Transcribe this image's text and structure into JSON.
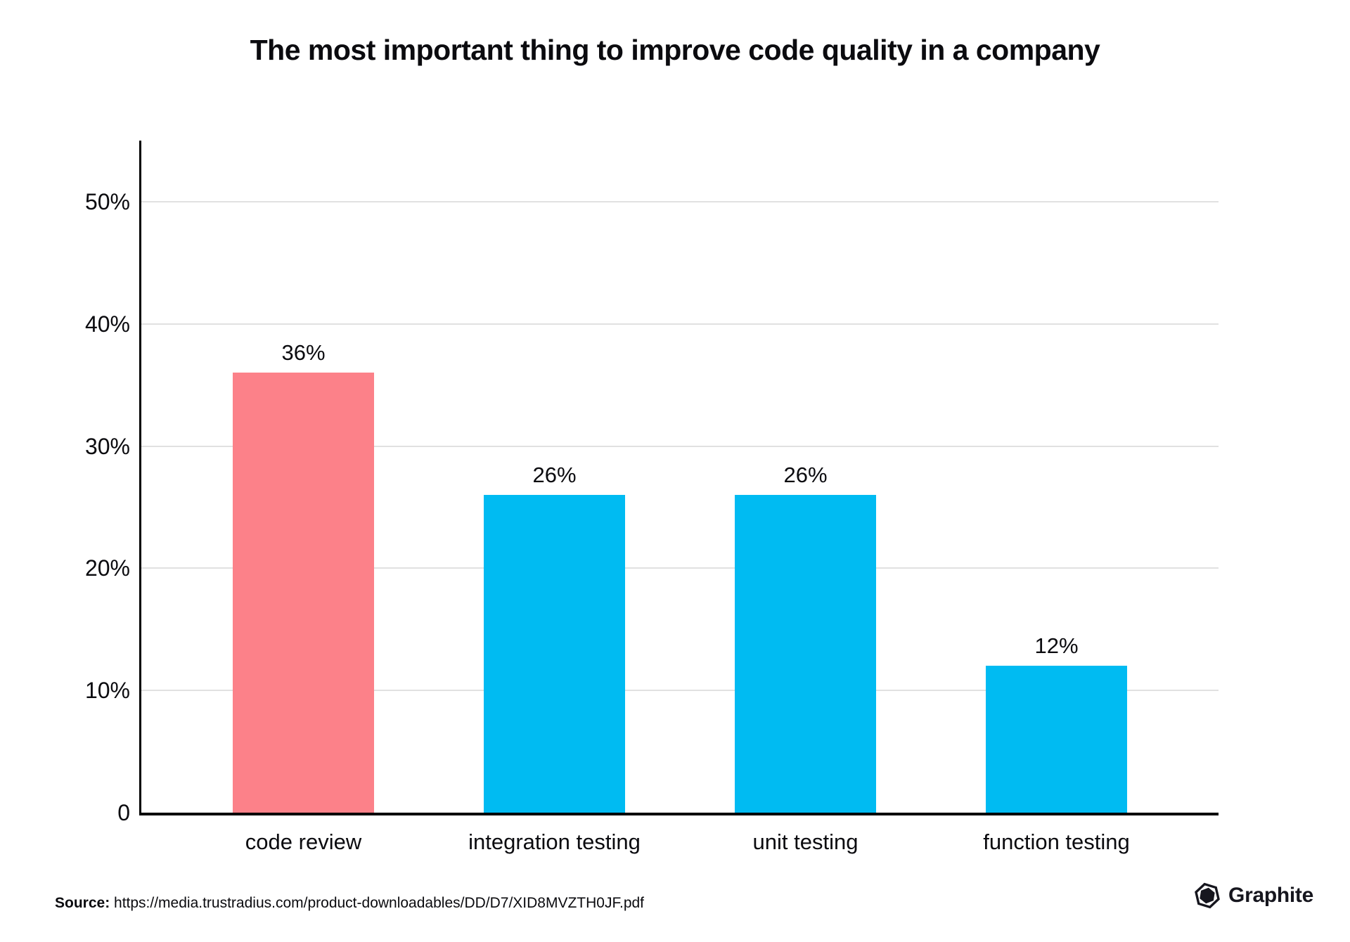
{
  "chart_data": {
    "type": "bar",
    "title": "The most important thing to improve code quality in a company",
    "categories": [
      "code review",
      "integration testing",
      "unit testing",
      "function testing"
    ],
    "values": [
      36,
      26,
      26,
      12
    ],
    "value_labels": [
      "36%",
      "26%",
      "26%",
      "12%"
    ],
    "bar_colors": [
      "#FC8189",
      "#00BBF2",
      "#00BBF2",
      "#00BBF2"
    ],
    "xlabel": "",
    "ylabel": "",
    "ylim": [
      0,
      55
    ],
    "yticks": [
      {
        "value": 0,
        "label": "0"
      },
      {
        "value": 10,
        "label": "10%"
      },
      {
        "value": 20,
        "label": "20%"
      },
      {
        "value": 30,
        "label": "30%"
      },
      {
        "value": 40,
        "label": "40%"
      },
      {
        "value": 50,
        "label": "50%"
      }
    ],
    "grid": "horizontal",
    "legend_position": "none"
  },
  "footer": {
    "source_label": "Source:",
    "source_url": "https://media.trustradius.com/product-downloadables/DD/D7/XID8MVZTH0JF.pdf",
    "brand_name": "Graphite"
  },
  "colors": {
    "highlight": "#FC8189",
    "primary": "#00BBF2",
    "gridline": "#E1E1E1",
    "axis": "#000000",
    "text": "#0B0B0F",
    "brand": "#16161E",
    "background": "#FFFFFF"
  }
}
